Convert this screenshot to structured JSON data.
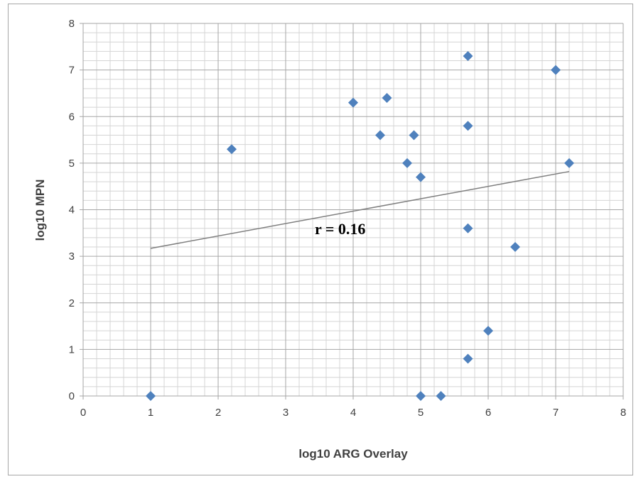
{
  "chart_data": {
    "type": "scatter",
    "title": "",
    "xlabel": "log10 ARG Overlay",
    "ylabel": "log10 MPN",
    "xlim": [
      0,
      8
    ],
    "ylim": [
      0,
      8
    ],
    "x_ticks": [
      "0",
      "1",
      "2",
      "3",
      "4",
      "5",
      "6",
      "7",
      "8"
    ],
    "y_ticks": [
      "0",
      "1",
      "2",
      "3",
      "4",
      "5",
      "6",
      "7",
      "8"
    ],
    "major_grid_step": 1,
    "minor_grid_step": 0.2,
    "grid": true,
    "marker": "diamond",
    "colors": {
      "marker": "#4f81bd",
      "trendline": "#7f7f7f",
      "grid_major": "#a6a6a6",
      "grid_minor": "#d4d4d4",
      "axis_text": "#404040"
    },
    "points": [
      {
        "x": 1.0,
        "y": 0.0
      },
      {
        "x": 2.2,
        "y": 5.3
      },
      {
        "x": 4.0,
        "y": 6.3
      },
      {
        "x": 4.4,
        "y": 5.6
      },
      {
        "x": 4.5,
        "y": 6.4
      },
      {
        "x": 4.8,
        "y": 5.0
      },
      {
        "x": 4.9,
        "y": 5.6
      },
      {
        "x": 5.0,
        "y": 4.7
      },
      {
        "x": 5.0,
        "y": 0.0
      },
      {
        "x": 5.3,
        "y": 0.0
      },
      {
        "x": 5.7,
        "y": 7.3
      },
      {
        "x": 5.7,
        "y": 5.8
      },
      {
        "x": 5.7,
        "y": 3.6
      },
      {
        "x": 5.7,
        "y": 0.8
      },
      {
        "x": 6.0,
        "y": 1.4
      },
      {
        "x": 6.4,
        "y": 3.2
      },
      {
        "x": 7.0,
        "y": 7.0
      },
      {
        "x": 7.2,
        "y": 5.0
      }
    ],
    "trendline": {
      "type": "linear",
      "x_start": 1.0,
      "y_start": 3.17,
      "x_end": 7.2,
      "y_end": 4.82
    },
    "annotation": {
      "text": "r = 0.16"
    }
  }
}
